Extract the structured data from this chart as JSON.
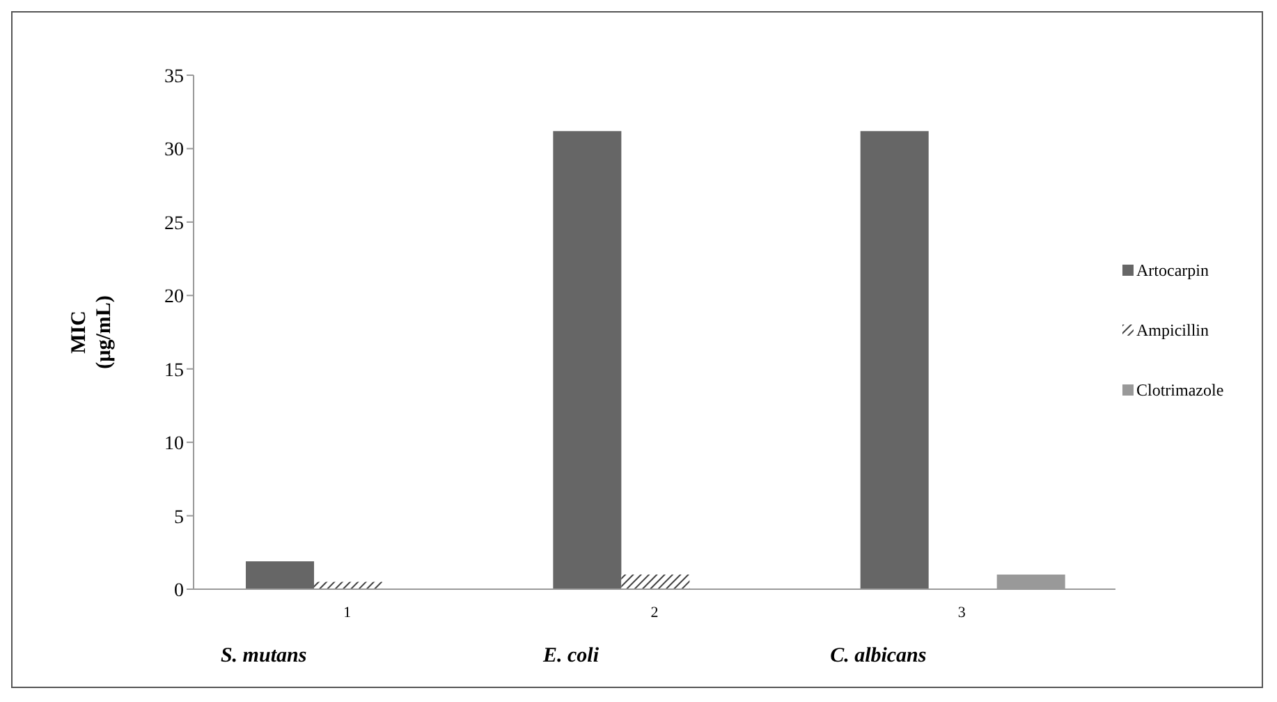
{
  "chart_data": {
    "type": "bar",
    "ylabel": "MIC (µg/mL)",
    "categories": [
      "1",
      "2",
      "3"
    ],
    "series": [
      {
        "name": "Artocarpin",
        "color": "#666666",
        "values": [
          1.9,
          31.2,
          31.2
        ]
      },
      {
        "name": "Ampicillin",
        "color": "#404040",
        "values": [
          0.5,
          1,
          null
        ]
      },
      {
        "name": "Clotrimazole",
        "color": "#999999",
        "values": [
          null,
          null,
          1
        ]
      }
    ],
    "ylim": [
      0,
      35
    ],
    "yticks": [
      0,
      5,
      10,
      15,
      20,
      25,
      30,
      35
    ],
    "grid": false,
    "legend": "right",
    "annotations": [
      "S. mutans",
      "E. coli",
      "C. albicans"
    ]
  }
}
